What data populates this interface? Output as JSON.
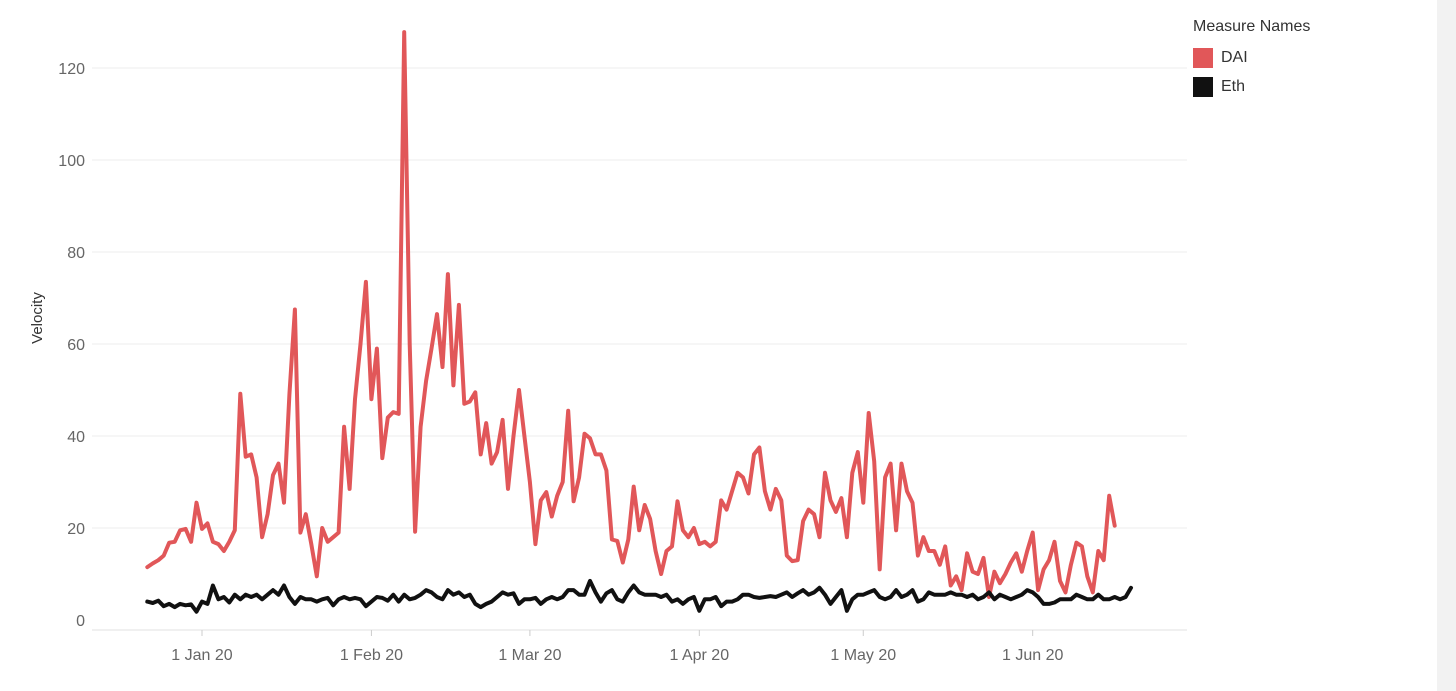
{
  "chart_data": {
    "type": "line",
    "title": "",
    "xlabel": "",
    "ylabel": "Velocity",
    "ylim": [
      0,
      132
    ],
    "xlim": [
      "2019-12-20",
      "2020-06-30"
    ],
    "y_ticks": [
      0,
      20,
      40,
      60,
      80,
      100,
      120
    ],
    "x_ticks": [
      {
        "date": "2020-01-01",
        "label": "1 Jan 20"
      },
      {
        "date": "2020-02-01",
        "label": "1 Feb 20"
      },
      {
        "date": "2020-03-01",
        "label": "1 Mar 20"
      },
      {
        "date": "2020-04-01",
        "label": "1 Apr 20"
      },
      {
        "date": "2020-05-01",
        "label": "1 May 20"
      },
      {
        "date": "2020-06-01",
        "label": "1 Jun 20"
      }
    ],
    "grid": true,
    "legend": {
      "title": "Measure Names",
      "position": "top-right"
    },
    "start_date": "2019-12-22",
    "series": [
      {
        "name": "DAI",
        "color": "#e15759",
        "values": [
          11.5,
          12.3,
          13.0,
          14.0,
          16.8,
          17.0,
          19.5,
          19.8,
          17.0,
          25.5,
          19.8,
          21.0,
          17.0,
          16.5,
          15.0,
          17.0,
          19.5,
          49.2,
          35.5,
          36.0,
          31.0,
          18.0,
          23.0,
          31.5,
          34.0,
          25.5,
          49.0,
          67.5,
          19.0,
          23.0,
          16.5,
          9.5,
          20.0,
          17.0,
          18.0,
          19.0,
          42.0,
          28.5,
          48.0,
          60.0,
          73.5,
          48.0,
          59.0,
          35.2,
          44.0,
          45.2,
          44.8,
          127.8,
          60.0,
          19.2,
          42.0,
          52.0,
          59.0,
          66.5,
          55.0,
          75.2,
          51.0,
          68.5,
          47.0,
          47.5,
          49.5,
          36.0,
          42.8,
          34.0,
          36.5,
          43.5,
          28.5,
          40.0,
          50.0,
          40.0,
          30.0,
          16.5,
          26.0,
          27.8,
          22.5,
          27.0,
          30.0,
          45.5,
          25.8,
          31.0,
          40.5,
          39.5,
          36.0,
          36.0,
          32.5,
          17.5,
          17.2,
          12.5,
          17.5,
          29.0,
          19.5,
          25.0,
          22.0,
          15.0,
          10.0,
          15.0,
          16.0,
          25.8,
          19.5,
          18.0,
          20.0,
          16.5,
          17.0,
          16.0,
          17.0,
          26.0,
          24.0,
          28.0,
          32.0,
          31.0,
          27.5,
          36.0,
          37.5,
          28.0,
          24.0,
          28.5,
          26.0,
          14.0,
          12.8,
          13.0,
          21.5,
          24.0,
          23.0,
          18.0,
          32.0,
          26.0,
          23.5,
          26.5,
          18.0,
          32.0,
          36.5,
          25.5,
          45.0,
          34.5,
          11.0,
          31.0,
          34.0,
          19.5,
          34.0,
          28.0,
          25.5,
          14.0,
          18.0,
          15.0,
          15.0,
          12.0,
          16.0,
          7.5,
          9.5,
          6.5,
          14.5,
          10.5,
          10.0,
          13.5,
          5.0,
          10.5,
          8.0,
          10.0,
          12.5,
          14.5,
          10.5,
          15.0,
          19.0,
          6.5,
          11.0,
          13.0,
          17.0,
          8.5,
          6.0,
          12.0,
          16.8,
          16.0,
          9.5,
          6.0,
          15.0,
          13.0,
          27.0,
          20.5
        ]
      },
      {
        "name": "Eth",
        "color": "#111111",
        "values": [
          4.0,
          3.7,
          4.2,
          3.0,
          3.5,
          2.8,
          3.5,
          3.2,
          3.4,
          1.8,
          4.0,
          3.5,
          7.5,
          4.5,
          5.0,
          3.8,
          5.5,
          4.5,
          5.5,
          5.0,
          5.5,
          4.5,
          5.5,
          6.5,
          5.5,
          7.5,
          5.0,
          3.5,
          5.0,
          4.5,
          4.5,
          4.0,
          4.5,
          4.8,
          3.2,
          4.5,
          5.0,
          4.5,
          4.8,
          4.5,
          3.0,
          4.0,
          5.0,
          4.8,
          4.2,
          5.5,
          4.0,
          5.5,
          4.5,
          4.8,
          5.5,
          6.5,
          6.0,
          5.0,
          4.5,
          6.5,
          5.5,
          6.0,
          5.0,
          5.5,
          3.5,
          2.8,
          3.5,
          4.0,
          5.0,
          6.0,
          5.5,
          5.8,
          3.5,
          4.5,
          4.5,
          4.8,
          3.5,
          4.5,
          5.0,
          4.5,
          5.0,
          6.5,
          6.5,
          5.5,
          5.5,
          8.5,
          6.0,
          4.0,
          5.8,
          6.5,
          4.5,
          4.0,
          6.0,
          7.5,
          6.0,
          5.5,
          5.5,
          5.5,
          5.0,
          5.5,
          4.0,
          4.5,
          3.5,
          4.5,
          5.0,
          2.0,
          4.5,
          4.5,
          5.0,
          3.0,
          4.0,
          4.0,
          4.5,
          5.5,
          5.5,
          5.0,
          4.8,
          5.0,
          5.2,
          5.0,
          5.5,
          6.0,
          5.0,
          5.8,
          6.5,
          5.5,
          6.0,
          7.0,
          5.5,
          3.5,
          5.0,
          6.5,
          2.0,
          4.5,
          5.5,
          5.5,
          6.0,
          6.5,
          5.0,
          4.5,
          5.0,
          6.5,
          5.0,
          5.5,
          6.5,
          4.0,
          4.5,
          6.0,
          5.5,
          5.5,
          5.5,
          6.0,
          5.5,
          5.5,
          5.0,
          5.5,
          4.5,
          5.0,
          6.0,
          4.5,
          5.5,
          5.0,
          4.5,
          5.0,
          5.5,
          6.5,
          6.0,
          5.0,
          3.5,
          3.5,
          3.8,
          4.5,
          4.5,
          4.5,
          5.5,
          5.0,
          4.5,
          4.5,
          5.5,
          4.5,
          4.5,
          5.0,
          4.5,
          5.0,
          7.0
        ]
      }
    ]
  }
}
